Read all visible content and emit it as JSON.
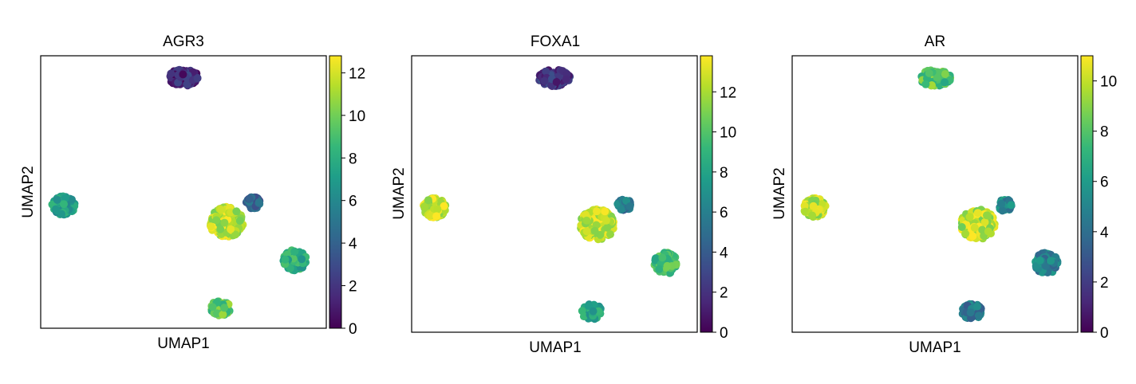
{
  "colormap": "viridis",
  "colors": {
    "viridis_stops": [
      "#440154",
      "#482878",
      "#3e4989",
      "#31688e",
      "#26828e",
      "#1f9e89",
      "#35b779",
      "#6ece58",
      "#b5de2b",
      "#fde725"
    ],
    "frame": "#000000",
    "background": "#ffffff"
  },
  "chart_data": [
    {
      "type": "scatter",
      "title": "AGR3",
      "xlabel": "UMAP1",
      "ylabel": "UMAP2",
      "grid": false,
      "colorbar": {
        "min": 0,
        "max": 12.8,
        "ticks": [
          0,
          2,
          4,
          6,
          8,
          10,
          12
        ]
      },
      "clusters": [
        {
          "x": 5.0,
          "y": 9.2,
          "rx": 0.55,
          "ry": 0.3,
          "value": 1.5,
          "n": 120
        },
        {
          "x": 0.8,
          "y": 4.5,
          "rx": 0.4,
          "ry": 0.35,
          "value": 7.0,
          "n": 110
        },
        {
          "x": 6.5,
          "y": 3.9,
          "rx": 0.6,
          "ry": 0.55,
          "value": 11.5,
          "n": 200
        },
        {
          "x": 7.45,
          "y": 4.6,
          "rx": 0.25,
          "ry": 0.22,
          "value": 4.0,
          "n": 45
        },
        {
          "x": 8.9,
          "y": 2.5,
          "rx": 0.4,
          "ry": 0.38,
          "value": 8.0,
          "n": 110
        },
        {
          "x": 6.3,
          "y": 0.75,
          "rx": 0.35,
          "ry": 0.28,
          "value": 9.5,
          "n": 70
        }
      ]
    },
    {
      "type": "scatter",
      "title": "FOXA1",
      "xlabel": "UMAP1",
      "ylabel": "UMAP2",
      "grid": false,
      "colorbar": {
        "min": 0,
        "max": 13.8,
        "ticks": [
          0,
          2,
          4,
          6,
          8,
          10,
          12
        ]
      },
      "clusters": [
        {
          "x": 5.0,
          "y": 9.2,
          "rx": 0.55,
          "ry": 0.3,
          "value": 2.0,
          "n": 120
        },
        {
          "x": 0.8,
          "y": 4.5,
          "rx": 0.4,
          "ry": 0.35,
          "value": 12.5,
          "n": 110
        },
        {
          "x": 6.5,
          "y": 3.9,
          "rx": 0.6,
          "ry": 0.55,
          "value": 12.5,
          "n": 200
        },
        {
          "x": 7.45,
          "y": 4.6,
          "rx": 0.25,
          "ry": 0.22,
          "value": 5.5,
          "n": 45
        },
        {
          "x": 8.9,
          "y": 2.5,
          "rx": 0.4,
          "ry": 0.38,
          "value": 9.5,
          "n": 110
        },
        {
          "x": 6.3,
          "y": 0.75,
          "rx": 0.35,
          "ry": 0.28,
          "value": 8.0,
          "n": 70
        }
      ]
    },
    {
      "type": "scatter",
      "title": "AR",
      "xlabel": "UMAP1",
      "ylabel": "UMAP2",
      "grid": false,
      "colorbar": {
        "min": 0,
        "max": 11,
        "ticks": [
          0,
          2,
          4,
          6,
          8,
          10
        ]
      },
      "clusters": [
        {
          "x": 5.0,
          "y": 9.2,
          "rx": 0.55,
          "ry": 0.3,
          "value": 8.0,
          "n": 120
        },
        {
          "x": 0.8,
          "y": 4.5,
          "rx": 0.4,
          "ry": 0.35,
          "value": 10.0,
          "n": 110
        },
        {
          "x": 6.5,
          "y": 3.9,
          "rx": 0.6,
          "ry": 0.55,
          "value": 10.0,
          "n": 200
        },
        {
          "x": 7.45,
          "y": 4.6,
          "rx": 0.25,
          "ry": 0.22,
          "value": 5.0,
          "n": 45
        },
        {
          "x": 8.9,
          "y": 2.5,
          "rx": 0.4,
          "ry": 0.38,
          "value": 5.0,
          "n": 110
        },
        {
          "x": 6.3,
          "y": 0.75,
          "rx": 0.35,
          "ry": 0.28,
          "value": 4.0,
          "n": 70
        }
      ]
    }
  ]
}
